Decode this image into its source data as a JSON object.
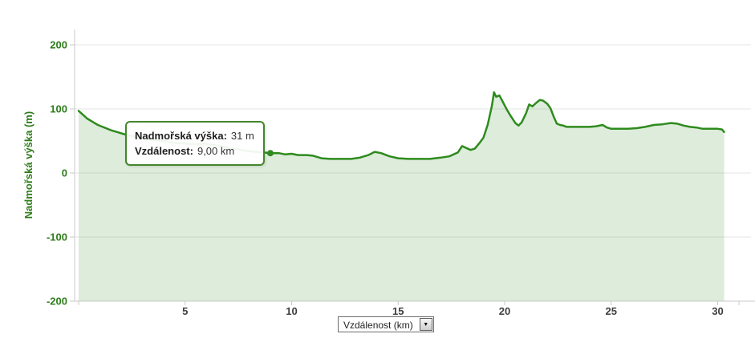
{
  "chart_data": {
    "type": "area",
    "title": "",
    "ylabel": "Nadmořská výška (m)",
    "xlabel": "Vzdálenost (km)",
    "ylim": [
      -200,
      200
    ],
    "xlim": [
      0,
      31.7
    ],
    "grid": "horizontal-only",
    "legend": "none",
    "y_tick_labels": [
      "200",
      "100",
      "0",
      "-100",
      "-200"
    ],
    "y_tick_values": [
      200,
      100,
      0,
      -100,
      -200
    ],
    "x_tick_labels": [
      "5",
      "10",
      "15",
      "20",
      "25",
      "30"
    ],
    "x_tick_values": [
      5,
      10,
      15,
      20,
      25,
      30
    ],
    "x_minor_tick_values": [
      0,
      31
    ],
    "colors": {
      "line": "#2e8b1d",
      "fill": "rgba(46,139,29,0.16)",
      "marker": "#2e8b1d",
      "y_label": "#2e7d1a",
      "x_label": "#3d3d3d",
      "grid": "#e6e6e6",
      "axis": "#c9c9c9"
    },
    "marker": {
      "x": 9.0,
      "y": 31
    },
    "series": [
      {
        "name": "elevation-profile",
        "points": [
          [
            0,
            97
          ],
          [
            0.2,
            91
          ],
          [
            0.4,
            85
          ],
          [
            0.7,
            79
          ],
          [
            0.9,
            75
          ],
          [
            1.2,
            71
          ],
          [
            1.5,
            67
          ],
          [
            1.8,
            64
          ],
          [
            2.2,
            60
          ],
          [
            2.6,
            57
          ],
          [
            3.0,
            55
          ],
          [
            3.5,
            52
          ],
          [
            4.0,
            50
          ],
          [
            4.5,
            47
          ],
          [
            5.0,
            46
          ],
          [
            5.5,
            45
          ],
          [
            5.9,
            46
          ],
          [
            6.3,
            44
          ],
          [
            6.8,
            41
          ],
          [
            7.3,
            38
          ],
          [
            7.8,
            35
          ],
          [
            8.3,
            33
          ],
          [
            8.7,
            32
          ],
          [
            9.0,
            31
          ],
          [
            9.4,
            31
          ],
          [
            9.7,
            29
          ],
          [
            10.0,
            30
          ],
          [
            10.3,
            28
          ],
          [
            10.7,
            28
          ],
          [
            11.0,
            27
          ],
          [
            11.4,
            23
          ],
          [
            11.8,
            22
          ],
          [
            12.3,
            22
          ],
          [
            12.8,
            22
          ],
          [
            13.2,
            24
          ],
          [
            13.6,
            28
          ],
          [
            13.9,
            33
          ],
          [
            14.2,
            31
          ],
          [
            14.6,
            26
          ],
          [
            15.0,
            23
          ],
          [
            15.5,
            22
          ],
          [
            16.0,
            22
          ],
          [
            16.5,
            22
          ],
          [
            17.0,
            24
          ],
          [
            17.4,
            26
          ],
          [
            17.8,
            32
          ],
          [
            18.0,
            42
          ],
          [
            18.2,
            39
          ],
          [
            18.4,
            36
          ],
          [
            18.6,
            38
          ],
          [
            18.8,
            46
          ],
          [
            19.0,
            55
          ],
          [
            19.2,
            75
          ],
          [
            19.4,
            105
          ],
          [
            19.5,
            126
          ],
          [
            19.6,
            119
          ],
          [
            19.75,
            121
          ],
          [
            19.9,
            112
          ],
          [
            20.1,
            99
          ],
          [
            20.3,
            88
          ],
          [
            20.5,
            78
          ],
          [
            20.65,
            74
          ],
          [
            20.8,
            79
          ],
          [
            21.0,
            93
          ],
          [
            21.15,
            107
          ],
          [
            21.3,
            104
          ],
          [
            21.5,
            110
          ],
          [
            21.65,
            114
          ],
          [
            21.8,
            113
          ],
          [
            22.0,
            108
          ],
          [
            22.15,
            101
          ],
          [
            22.3,
            88
          ],
          [
            22.45,
            77
          ],
          [
            22.6,
            75
          ],
          [
            22.75,
            74
          ],
          [
            22.9,
            72
          ],
          [
            23.2,
            72
          ],
          [
            23.6,
            72
          ],
          [
            24.0,
            72
          ],
          [
            24.3,
            73
          ],
          [
            24.6,
            75
          ],
          [
            24.8,
            71
          ],
          [
            25.0,
            69
          ],
          [
            25.4,
            69
          ],
          [
            25.8,
            69
          ],
          [
            26.2,
            70
          ],
          [
            26.6,
            72
          ],
          [
            27.0,
            75
          ],
          [
            27.4,
            76
          ],
          [
            27.8,
            78
          ],
          [
            28.1,
            77
          ],
          [
            28.4,
            74
          ],
          [
            28.7,
            72
          ],
          [
            29.0,
            71
          ],
          [
            29.3,
            69
          ],
          [
            29.6,
            69
          ],
          [
            30.0,
            69
          ],
          [
            30.2,
            68
          ],
          [
            30.3,
            64
          ]
        ]
      }
    ]
  },
  "tooltip": {
    "elevation_label": "Nadmořská výška:",
    "elevation_value": "31 m",
    "distance_label": "Vzdálenost:",
    "distance_value": "9,00 km"
  },
  "x_unit_select": {
    "value": "Vzdálenost (km)",
    "arrow_icon": "▼"
  }
}
